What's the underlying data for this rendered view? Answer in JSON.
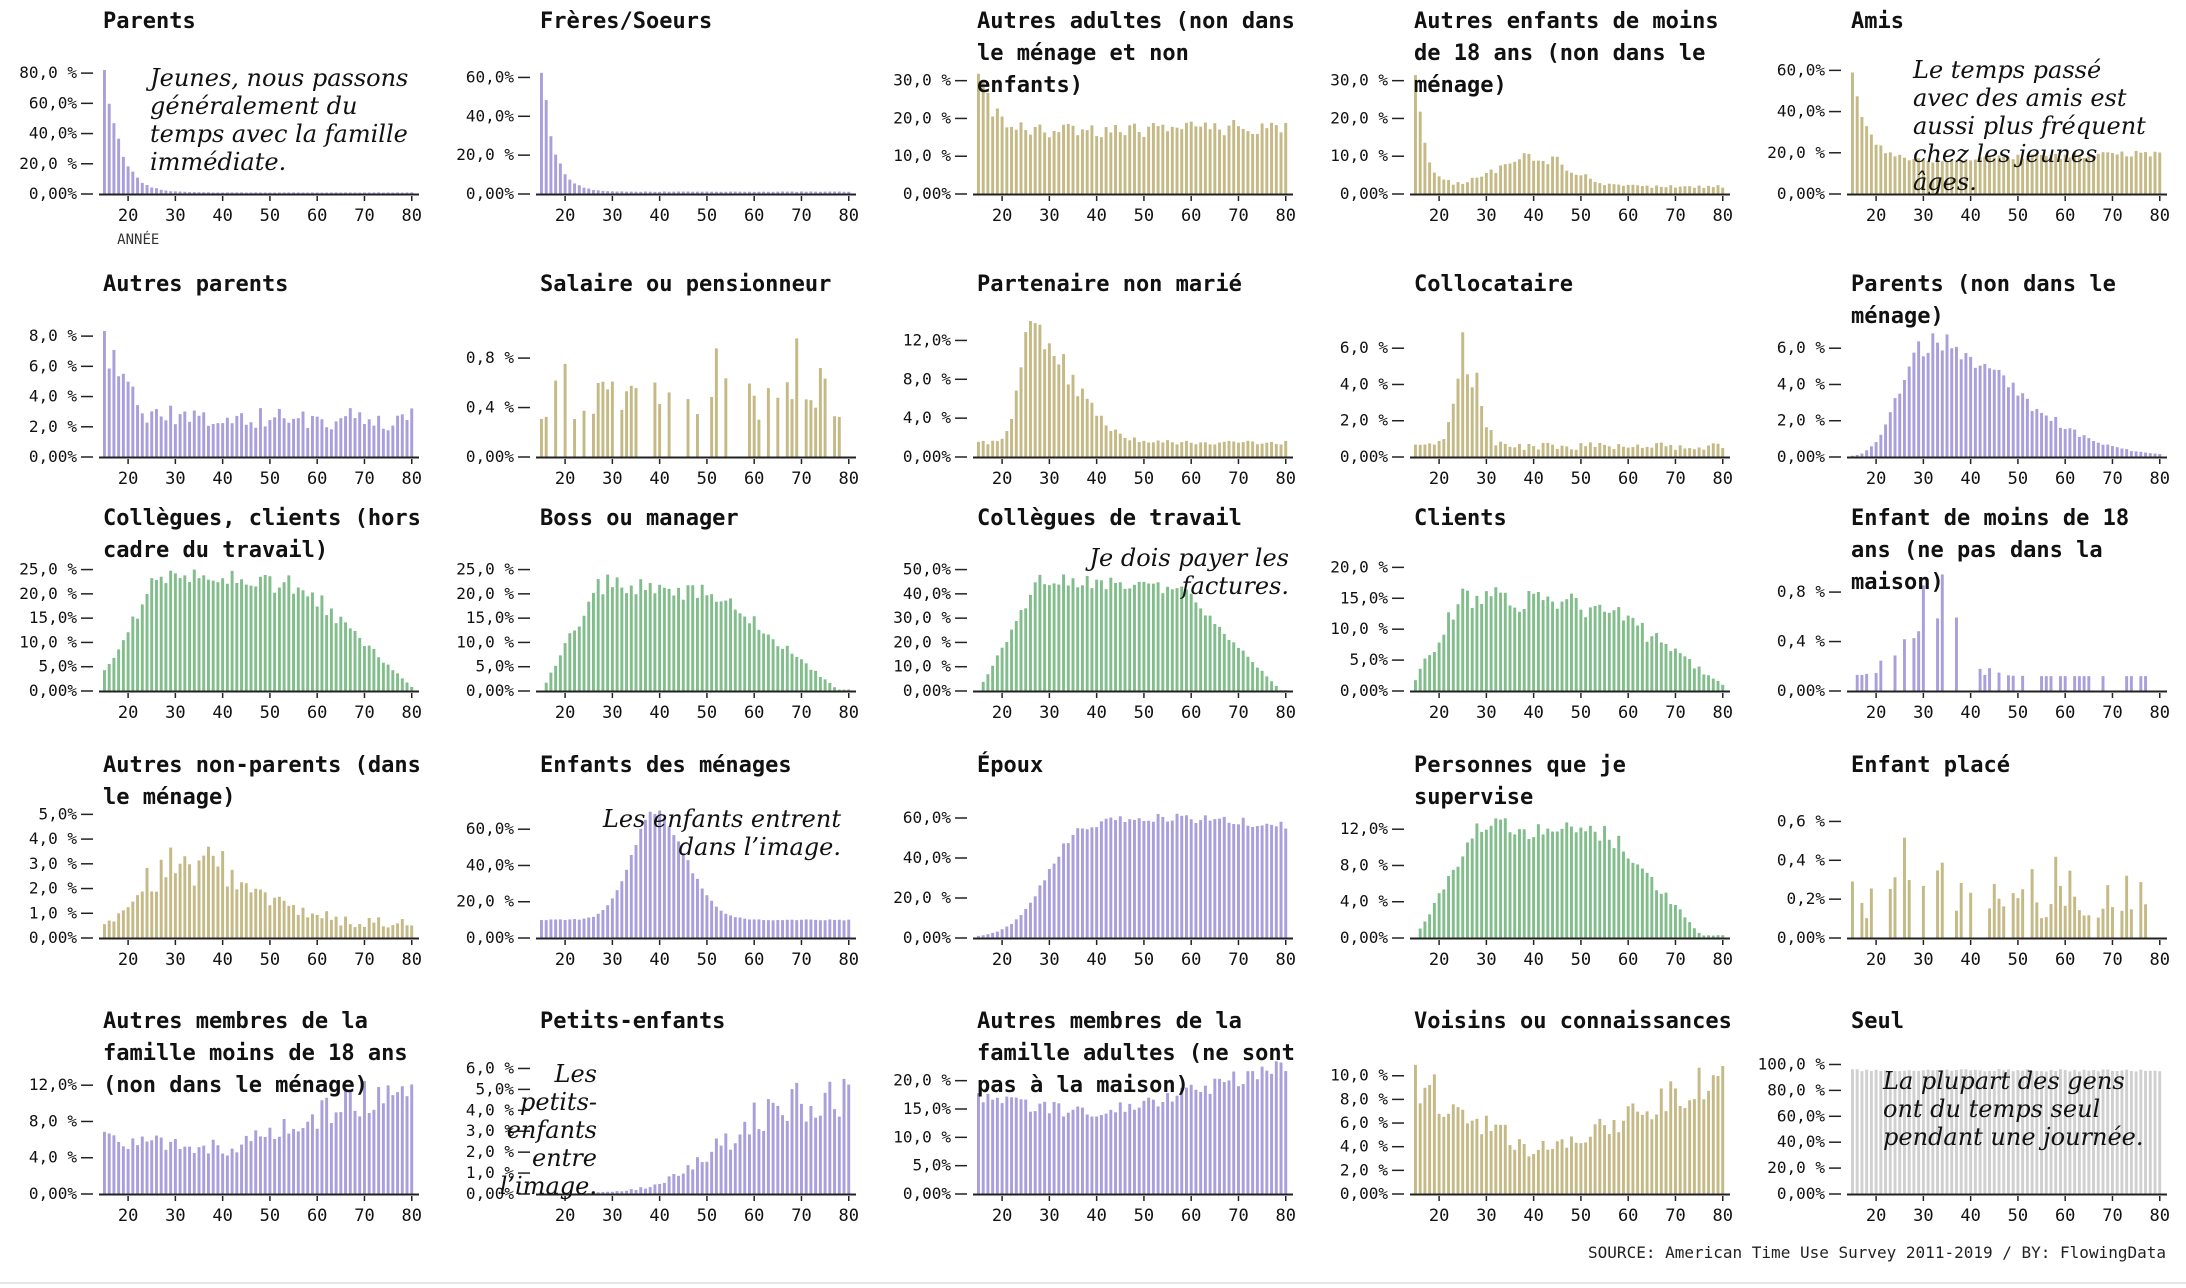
{
  "colors": {
    "family": "#a99fdc",
    "other": "#c5b985",
    "work": "#82bd8c",
    "alone": "#d0d0d0",
    "axis": "#222222"
  },
  "x_axis": {
    "ticks": [
      20,
      30,
      40,
      50,
      60,
      70,
      80
    ],
    "range": [
      15,
      80
    ],
    "label": "ANNÉE"
  },
  "source": "SOURCE: American Time Use Survey 2011-2019 / BY: FlowingData",
  "chart_data": [
    {
      "type": "bar",
      "title": "Parents",
      "color_key": "family",
      "ylim": [
        0,
        0.9
      ],
      "yticks": [
        "0,00%",
        "20,0 %",
        "40,0%",
        "60,0%",
        "80,0 %"
      ],
      "ytick_values": [
        0,
        0.2,
        0.4,
        0.6,
        0.8
      ],
      "shape": {
        "kind": "decay",
        "start": 0.88,
        "rate": 0.32,
        "tail": 0.01,
        "noise": 0.08
      },
      "show_xlabel": true,
      "annotation": {
        "text": "Jeunes, nous passons généralement du temps avec la famille immédiate.",
        "align": "left"
      }
    },
    {
      "type": "bar",
      "title": "Frères/Soeurs",
      "color_key": "family",
      "ylim": [
        0,
        0.7
      ],
      "yticks": [
        "0,00%",
        "20,0 %",
        "40,0%",
        "60,0%"
      ],
      "ytick_values": [
        0,
        0.2,
        0.4,
        0.6
      ],
      "shape": {
        "kind": "decay",
        "start": 0.66,
        "rate": 0.38,
        "tail": 0.012,
        "noise": 0.08
      }
    },
    {
      "type": "bar",
      "title": "Autres adultes (non dans le ménage et non enfants)",
      "color_key": "other",
      "ylim": [
        0,
        0.36
      ],
      "yticks": [
        "0,00%",
        "10,0 %",
        "20,0 %",
        "30,0 %"
      ],
      "ytick_values": [
        0,
        0.1,
        0.2,
        0.3
      ],
      "shape": {
        "kind": "decayflat",
        "start": 0.34,
        "rate": 0.35,
        "tail": 0.16,
        "rise": 0.02,
        "noise": 0.12
      }
    },
    {
      "type": "bar",
      "title": "Autres enfants de moins de 18 ans (non dans le ménage)",
      "color_key": "other",
      "ylim": [
        0,
        0.36
      ],
      "yticks": [
        "0,00%",
        "10,0 %",
        "20,0 %",
        "30,0 %"
      ],
      "ytick_values": [
        0,
        0.1,
        0.2,
        0.3
      ],
      "shape": {
        "kind": "decaybump",
        "start": 0.34,
        "rate": 0.5,
        "tail": 0.02,
        "bump": 0.08,
        "center": 40,
        "width": 10,
        "noise": 0.2
      }
    },
    {
      "type": "bar",
      "title": "Amis",
      "color_key": "other",
      "ylim": [
        0,
        0.66
      ],
      "yticks": [
        "0,00%",
        "20,0 %",
        "40,0%",
        "60,0%"
      ],
      "ytick_values": [
        0,
        0.2,
        0.4,
        0.6
      ],
      "shape": {
        "kind": "decayflat",
        "start": 0.6,
        "rate": 0.3,
        "tail": 0.15,
        "rise": 0.05,
        "noise": 0.08
      },
      "annotation": {
        "text": "Le temps passé avec des amis est aussi plus fréquent chez les jeunes âges.",
        "align": "left"
      }
    },
    {
      "type": "bar",
      "title": "Autres parents",
      "color_key": "family",
      "ylim": [
        0,
        0.09
      ],
      "yticks": [
        "0,00%",
        "2,0 %",
        "4,0 %",
        "6,0 %",
        "8,0 %"
      ],
      "ytick_values": [
        0,
        0.02,
        0.04,
        0.06,
        0.08
      ],
      "shape": {
        "kind": "decayflat",
        "start": 0.085,
        "rate": 0.25,
        "tail": 0.025,
        "rise": 0,
        "noise": 0.3
      }
    },
    {
      "type": "bar",
      "title": "Salaire ou pensionneur",
      "color_key": "other",
      "ylim": [
        0,
        0.011
      ],
      "yticks": [
        "0,00%",
        "0,4 %",
        "0,8 %"
      ],
      "ytick_values": [
        0,
        0.004,
        0.008
      ],
      "shape": {
        "kind": "sparse",
        "base": 0.003,
        "peak": 0.01,
        "noise": 0.9
      }
    },
    {
      "type": "bar",
      "title": "Partenaire non marié",
      "color_key": "other",
      "ylim": [
        0,
        0.14
      ],
      "yticks": [
        "0,00%",
        "4,0 %",
        "8,0 %",
        "12,0%"
      ],
      "ytick_values": [
        0,
        0.04,
        0.08,
        0.12
      ],
      "shape": {
        "kind": "peakskew",
        "peak": 0.125,
        "center": 26,
        "left": 3.5,
        "right": 12,
        "tail": 0.015,
        "noise": 0.15
      }
    },
    {
      "type": "bar",
      "title": "Collocataire",
      "color_key": "other",
      "ylim": [
        0,
        0.075
      ],
      "yticks": [
        "0,00%",
        "2,0 %",
        "4,0 %",
        "6,0 %"
      ],
      "ytick_values": [
        0,
        0.02,
        0.04,
        0.06
      ],
      "shape": {
        "kind": "peakskew",
        "peak": 0.068,
        "center": 25,
        "left": 2.5,
        "right": 4,
        "tail": 0.006,
        "noise": 0.35
      }
    },
    {
      "type": "bar",
      "title": "Parents (non dans le ménage)",
      "color_key": "family",
      "ylim": [
        0,
        0.075
      ],
      "yticks": [
        "0,00%",
        "2,0 %",
        "4,0 %",
        "6,0 %"
      ],
      "ytick_values": [
        0,
        0.02,
        0.04,
        0.06
      ],
      "shape": {
        "kind": "peakskew",
        "peak": 0.063,
        "center": 30,
        "left": 7,
        "right": 26,
        "tail": 0,
        "noise": 0.12
      }
    },
    {
      "type": "bar",
      "title": "Collègues, clients (hors cadre du travail)",
      "color_key": "work",
      "ylim": [
        0,
        0.28
      ],
      "yticks": [
        "0,00%",
        "5,0%",
        "10,0 %",
        "15,0%",
        "20,0 %",
        "25,0 %"
      ],
      "ytick_values": [
        0,
        0.05,
        0.1,
        0.15,
        0.2,
        0.25
      ],
      "shape": {
        "kind": "plateau",
        "peak": 0.235,
        "rise_end": 26,
        "fall_start": 57,
        "fall_end": 81,
        "start": 0.04,
        "noise": 0.1
      }
    },
    {
      "type": "bar",
      "title": "Boss ou manager",
      "color_key": "work",
      "ylim": [
        0,
        0.28
      ],
      "yticks": [
        "0,00%",
        "5,0%",
        "10,0 %",
        "15,0%",
        "20,0 %",
        "25,0 %"
      ],
      "ytick_values": [
        0,
        0.05,
        0.1,
        0.15,
        0.2,
        0.25
      ],
      "shape": {
        "kind": "plateau",
        "peak": 0.22,
        "rise_end": 27,
        "fall_start": 52,
        "fall_end": 78,
        "start": 0.0,
        "noise": 0.1
      }
    },
    {
      "type": "bar",
      "title": "Collègues de travail",
      "color_key": "work",
      "ylim": [
        0,
        0.56
      ],
      "yticks": [
        "0,00%",
        "10,0 %",
        "20,0 %",
        "30,0 %",
        "40,0%",
        "50,0%"
      ],
      "ytick_values": [
        0,
        0.1,
        0.2,
        0.3,
        0.4,
        0.5
      ],
      "shape": {
        "kind": "plateau",
        "peak": 0.46,
        "rise_end": 28,
        "fall_start": 58,
        "fall_end": 79,
        "start": 0.0,
        "noise": 0.06
      },
      "annotation": {
        "text": "Je dois payer les factures.",
        "align": "right"
      }
    },
    {
      "type": "bar",
      "title": "Clients",
      "color_key": "work",
      "ylim": [
        0,
        0.22
      ],
      "yticks": [
        "0,00%",
        "5,0%",
        "10,0 %",
        "15,0%",
        "20,0 %"
      ],
      "ytick_values": [
        0,
        0.05,
        0.1,
        0.15,
        0.2
      ],
      "shape": {
        "kind": "plateau",
        "peak": 0.15,
        "rise_end": 25,
        "fall_start": 55,
        "fall_end": 82,
        "start": 0.02,
        "noise": 0.15
      }
    },
    {
      "type": "bar",
      "title": "Enfant de moins de 18 ans (ne pas dans la maison)",
      "color_key": "family",
      "ylim": [
        0,
        0.011
      ],
      "yticks": [
        "0,00%",
        "0,4 %",
        "0,8 %"
      ],
      "ytick_values": [
        0,
        0.004,
        0.008
      ],
      "shape": {
        "kind": "sparsepeak",
        "center": 32,
        "peak": 0.009,
        "width": 8,
        "noise": 0.8
      }
    },
    {
      "type": "bar",
      "title": "Autres non-parents (dans le ménage)",
      "color_key": "other",
      "ylim": [
        0,
        0.055
      ],
      "yticks": [
        "0,00%",
        "1,0 %",
        "2,0 %",
        "3,0 %",
        "4,0 %",
        "5,0%"
      ],
      "ytick_values": [
        0,
        0.01,
        0.02,
        0.03,
        0.04,
        0.05
      ],
      "shape": {
        "kind": "peakskew",
        "peak": 0.033,
        "center": 30,
        "left": 8,
        "right": 20,
        "tail": 0.006,
        "noise": 0.35
      }
    },
    {
      "type": "bar",
      "title": "Enfants des ménages",
      "color_key": "family",
      "ylim": [
        0,
        0.75
      ],
      "yticks": [
        "0,00%",
        "20,0 %",
        "40,0%",
        "60,0%"
      ],
      "ytick_values": [
        0,
        0.2,
        0.4,
        0.6
      ],
      "shape": {
        "kind": "peakskew",
        "peak": 0.69,
        "center": 39,
        "left": 7,
        "right": 9,
        "tail": 0.1,
        "noise": 0.03
      },
      "annotation": {
        "text": "Les enfants entrent dans l’image.",
        "align": "right"
      }
    },
    {
      "type": "bar",
      "title": "Époux",
      "color_key": "family",
      "ylim": [
        0,
        0.68
      ],
      "yticks": [
        "0,00%",
        "20,0 %",
        "40,0%",
        "60,0%"
      ],
      "ytick_values": [
        0,
        0.2,
        0.4,
        0.6
      ],
      "shape": {
        "kind": "sigmoid",
        "peak": 0.6,
        "center": 29,
        "width": 3.5,
        "decline": 0.06,
        "noise": 0.04
      }
    },
    {
      "type": "bar",
      "title": "Personnes que je supervise",
      "color_key": "work",
      "ylim": [
        0,
        0.15
      ],
      "yticks": [
        "0,00%",
        "4,0 %",
        "8,0 %",
        "12,0%"
      ],
      "ytick_values": [
        0,
        0.04,
        0.08,
        0.12
      ],
      "shape": {
        "kind": "plateau",
        "peak": 0.125,
        "rise_end": 28,
        "fall_start": 56,
        "fall_end": 76,
        "start": 0.0,
        "noise": 0.1
      }
    },
    {
      "type": "bar",
      "title": "Enfant placé",
      "color_key": "other",
      "ylim": [
        0,
        0.007
      ],
      "yticks": [
        "0,00%",
        "0,2%",
        "0,4 %",
        "0,6 %"
      ],
      "ytick_values": [
        0,
        0.002,
        0.004,
        0.006
      ],
      "shape": {
        "kind": "sparse",
        "base": 0.001,
        "peak": 0.006,
        "noise": 0.9
      }
    },
    {
      "type": "bar",
      "title": "Autres membres de la famille moins de 18 ans (non dans le ménage)",
      "color_key": "family",
      "ylim": [
        0,
        0.15
      ],
      "yticks": [
        "0,00%",
        "4,0 %",
        "8,0 %",
        "12,0%"
      ],
      "ytick_values": [
        0,
        0.04,
        0.08,
        0.12
      ],
      "shape": {
        "kind": "rise",
        "start": 0.065,
        "mid": 0.05,
        "end": 0.125,
        "noise": 0.2
      }
    },
    {
      "type": "bar",
      "title": "Petits-enfants",
      "color_key": "family",
      "ylim": [
        0,
        0.065
      ],
      "yticks": [
        "0,00%",
        "1,0 %",
        "2,0 %",
        "3,0 %",
        "4,0 %",
        "5,0%",
        "6,0 %"
      ],
      "ytick_values": [
        0,
        0.01,
        0.02,
        0.03,
        0.04,
        0.05,
        0.06
      ],
      "shape": {
        "kind": "sigmoid",
        "peak": 0.045,
        "center": 52,
        "width": 6,
        "decline": 0.0,
        "noise": 0.25
      },
      "annotation": {
        "text": "Les petits-enfants entre l’image.",
        "align": "right"
      }
    },
    {
      "type": "bar",
      "title": "Autres membres de la famille adultes (ne sont pas à la maison)",
      "color_key": "family",
      "ylim": [
        0,
        0.24
      ],
      "yticks": [
        "0,00%",
        "5,0%",
        "10,0 %",
        "15,0%",
        "20,0 %"
      ],
      "ytick_values": [
        0,
        0.05,
        0.1,
        0.15,
        0.2
      ],
      "shape": {
        "kind": "rise",
        "start": 0.17,
        "mid": 0.14,
        "end": 0.225,
        "noise": 0.08
      }
    },
    {
      "type": "bar",
      "title": "Voisins ou connaissances",
      "color_key": "other",
      "ylim": [
        0,
        0.115
      ],
      "yticks": [
        "0,00%",
        "2,0 %",
        "4,0 %",
        "6,0 %",
        "8,0 %",
        "10,0 %"
      ],
      "ytick_values": [
        0,
        0.02,
        0.04,
        0.06,
        0.08,
        0.1
      ],
      "shape": {
        "kind": "rise",
        "start": 0.095,
        "mid": 0.035,
        "end": 0.1,
        "noise": 0.2
      }
    },
    {
      "type": "bar",
      "title": "Seul",
      "color_key": "alone",
      "ylim": [
        0,
        1.05
      ],
      "yticks": [
        "0,00%",
        "20,0 %",
        "40,0%",
        "60,0%",
        "80,0 %",
        "100,0 %"
      ],
      "ytick_values": [
        0,
        0.2,
        0.4,
        0.6,
        0.8,
        1.0
      ],
      "shape": {
        "kind": "flat",
        "value": 0.955,
        "noise": 0.01
      },
      "annotation": {
        "text": "La plupart des gens ont du temps seul pendant une journée.",
        "align": "left"
      }
    }
  ]
}
